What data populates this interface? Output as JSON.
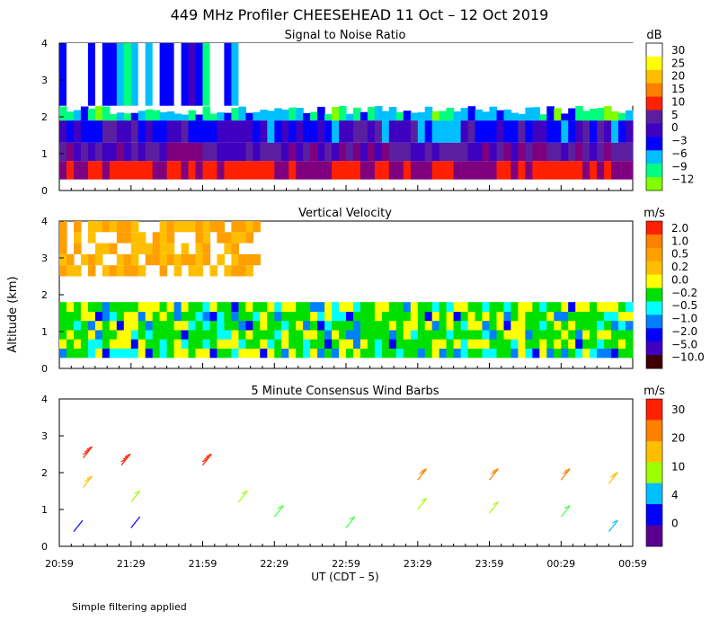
{
  "figure_title": "449 MHz Profiler CHEESEHEAD 11 Oct – 12 Oct 2019",
  "y_axis_label": "Altitude (km)",
  "x_axis_label": "UT  (CDT – 5)",
  "footer_note": "Simple filtering applied",
  "colors": {
    "background": "#ffffff",
    "snr_scale": [
      "#7fff00",
      "#00ff7f",
      "#00bfff",
      "#0000ff",
      "#3f00bf",
      "#5a1ea0",
      "#7f007f",
      "#ff2000",
      "#ff7f00",
      "#ffbf00",
      "#ffff00",
      "#ffffff"
    ],
    "velocity_scale": [
      "#3f0000",
      "#3f00bf",
      "#0000ff",
      "#007fff",
      "#00ffff",
      "#00e000",
      "#ffff00",
      "#ffbf00",
      "#ff9f00",
      "#ff7f00",
      "#ff2000"
    ],
    "wind_scale": [
      "#5a0090",
      "#0000ff",
      "#00bfff",
      "#3fff3f",
      "#9fff00",
      "#ffbf00",
      "#ff7f00",
      "#ff2000"
    ]
  },
  "chart_data": [
    {
      "type": "heatmap",
      "title": "Signal to Noise Ratio",
      "units": "dB",
      "ylabel": "Altitude (km)",
      "ylim": [
        0,
        4
      ],
      "yticks": [
        "0",
        "1",
        "2",
        "3",
        "4"
      ],
      "colorbar_labels": [
        "30",
        "25",
        "20",
        "15",
        "10",
        "5",
        "0",
        "−3",
        "−6",
        "−9",
        "−12"
      ],
      "layers": [
        {
          "z_km": [
            0.3,
            0.8
          ],
          "snr_db": 10
        },
        {
          "z_km": [
            0.8,
            1.3
          ],
          "snr_db": 2
        },
        {
          "z_km": [
            1.3,
            1.9
          ],
          "snr_db": -3
        },
        {
          "z_km": [
            1.9,
            2.3
          ],
          "snr_db": -9
        },
        {
          "z_km": [
            2.3,
            4.0
          ],
          "snr_db": 30
        }
      ]
    },
    {
      "type": "heatmap",
      "title": "Vertical Velocity",
      "units": "m/s",
      "ylabel": "Altitude (km)",
      "ylim": [
        0,
        4
      ],
      "yticks": [
        "0",
        "1",
        "2",
        "3",
        "4"
      ],
      "colorbar_labels": [
        "2.0",
        "1.0",
        "0.5",
        "0.2",
        "0.0",
        "−0.2",
        "−0.5",
        "−1.0",
        "−2.0",
        "−5.0",
        "−10.0"
      ],
      "layers": [
        {
          "z_km": [
            0.3,
            1.8
          ],
          "w_ms": -0.2
        },
        {
          "z_km": [
            2.5,
            4.0
          ],
          "w_ms": 0.5
        }
      ]
    },
    {
      "type": "scatter",
      "title": "5 Minute Consensus Wind Barbs",
      "units": "m/s",
      "xlabel": "UT  (CDT – 5)",
      "ylabel": "Altitude (km)",
      "ylim": [
        0,
        4
      ],
      "yticks": [
        "0",
        "1",
        "2",
        "3",
        "4"
      ],
      "xticks": [
        "20:59",
        "21:29",
        "21:59",
        "22:29",
        "22:59",
        "23:29",
        "23:59",
        "00:29",
        "00:59"
      ],
      "colorbar_labels": [
        "30",
        "20",
        "10",
        "4",
        "0"
      ],
      "barbs": [
        {
          "time": "21:09",
          "z_km": 2.4,
          "speed_ms": 30
        },
        {
          "time": "21:25",
          "z_km": 2.2,
          "speed_ms": 29
        },
        {
          "time": "21:59",
          "z_km": 2.2,
          "speed_ms": 28
        },
        {
          "time": "21:09",
          "z_km": 1.6,
          "speed_ms": 16
        },
        {
          "time": "21:29",
          "z_km": 1.2,
          "speed_ms": 14
        },
        {
          "time": "22:14",
          "z_km": 1.2,
          "speed_ms": 12
        },
        {
          "time": "21:05",
          "z_km": 0.4,
          "speed_ms": 3
        },
        {
          "time": "21:29",
          "z_km": 0.5,
          "speed_ms": 4
        },
        {
          "time": "22:29",
          "z_km": 0.8,
          "speed_ms": 8
        },
        {
          "time": "22:59",
          "z_km": 0.5,
          "speed_ms": 9
        },
        {
          "time": "23:29",
          "z_km": 1.8,
          "speed_ms": 19
        },
        {
          "time": "23:59",
          "z_km": 1.8,
          "speed_ms": 20
        },
        {
          "time": "00:29",
          "z_km": 1.8,
          "speed_ms": 19
        },
        {
          "time": "00:49",
          "z_km": 1.7,
          "speed_ms": 18
        },
        {
          "time": "23:29",
          "z_km": 1.0,
          "speed_ms": 12
        },
        {
          "time": "23:59",
          "z_km": 0.9,
          "speed_ms": 11
        },
        {
          "time": "00:29",
          "z_km": 0.8,
          "speed_ms": 9
        },
        {
          "time": "00:49",
          "z_km": 0.4,
          "speed_ms": 6
        }
      ]
    }
  ]
}
